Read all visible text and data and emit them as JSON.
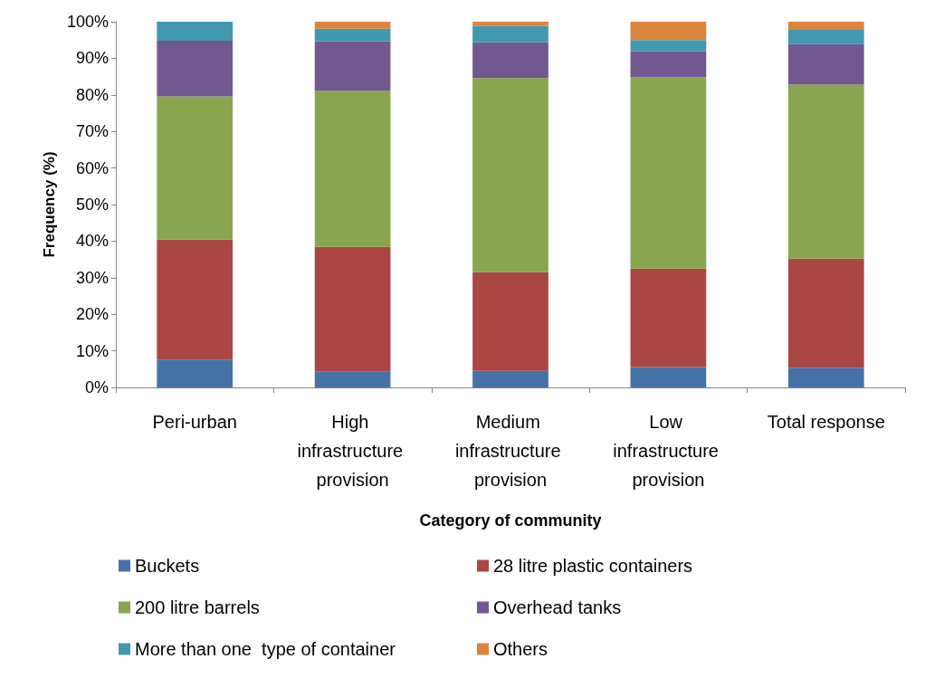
{
  "chart_data": {
    "type": "bar",
    "stacked": true,
    "xlabel": "Category of community",
    "ylabel": "Frequency (%)",
    "categories": [
      "Peri-urban",
      "High infrastructure provision",
      "Medium infrastructure provision",
      "Low infrastructure provision",
      "Total response"
    ],
    "series": [
      {
        "name": "Buckets",
        "color": "#4572a7",
        "values": [
          7.6,
          4.3,
          4.5,
          5.6,
          5.4
        ]
      },
      {
        "name": "28 litre plastic containers",
        "color": "#aa4643",
        "values": [
          32.9,
          34.1,
          27.0,
          26.9,
          29.8
        ]
      },
      {
        "name": "200 litre barrels",
        "color": "#89a54e",
        "values": [
          39.1,
          42.7,
          53.1,
          52.3,
          47.6
        ]
      },
      {
        "name": "Overhead tanks",
        "color": "#71588f",
        "values": [
          15.2,
          13.6,
          9.8,
          7.1,
          11.1
        ]
      },
      {
        "name": "More than one  type of container",
        "color": "#4198af",
        "values": [
          5.2,
          3.4,
          4.5,
          3.1,
          3.9
        ]
      },
      {
        "name": "Others",
        "color": "#db843d",
        "values": [
          0,
          1.9,
          1.1,
          5.0,
          2.2
        ]
      }
    ],
    "ylim": [
      0,
      100
    ],
    "yticks": [
      {
        "value": 0,
        "label": "0%"
      },
      {
        "value": 10,
        "label": "10%"
      },
      {
        "value": 20,
        "label": "20%"
      },
      {
        "value": 30,
        "label": "30%"
      },
      {
        "value": 40,
        "label": "40%"
      },
      {
        "value": 50,
        "label": "50%"
      },
      {
        "value": 60,
        "label": "60%"
      },
      {
        "value": 70,
        "label": "70%"
      },
      {
        "value": 80,
        "label": "80%"
      },
      {
        "value": 90,
        "label": "90%"
      },
      {
        "value": 100,
        "label": "100%"
      }
    ],
    "grid": false,
    "legend": "bottom"
  }
}
